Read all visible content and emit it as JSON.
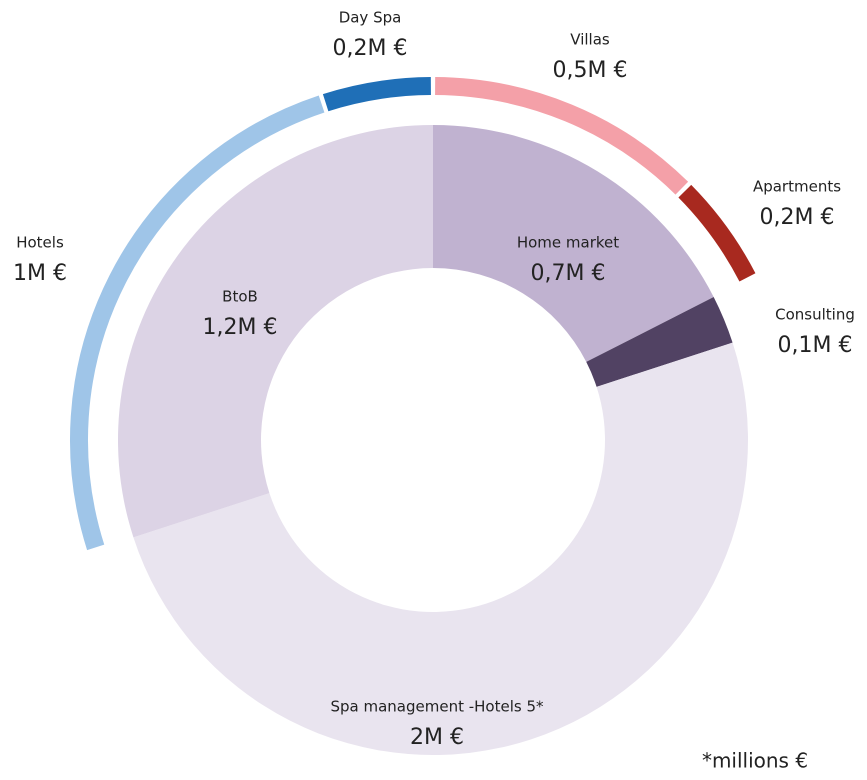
{
  "chart_data": {
    "type": "donut",
    "segments": [
      {
        "name": "Home market",
        "value": 0.7,
        "value_label": "0,7M €",
        "color": "#c0b2d0",
        "children": [
          {
            "name": "Villas",
            "value": 0.5,
            "value_label": "0,5M €",
            "color": "#f4a0a8"
          },
          {
            "name": "Apartments",
            "value": 0.2,
            "value_label": "0,2M €",
            "color": "#a8291f"
          }
        ]
      },
      {
        "name": "Consulting",
        "value": 0.1,
        "value_label": "0,1M €",
        "color": "#514263",
        "children": []
      },
      {
        "name": "Spa management -Hotels 5*",
        "value": 2,
        "value_label": "2M €",
        "color": "#e9e4ef",
        "children": []
      },
      {
        "name": "BtoB",
        "value": 1.2,
        "value_label": "1,2M €",
        "color": "#dcd3e5",
        "children": [
          {
            "name": "Hotels",
            "value": 1,
            "value_label": "1M €",
            "color": "#9fc5e8"
          },
          {
            "name": "Day Spa",
            "value": 0.2,
            "value_label": "0,2M €",
            "color": "#1f6fb7"
          }
        ]
      }
    ],
    "footnote": "*millions €"
  }
}
